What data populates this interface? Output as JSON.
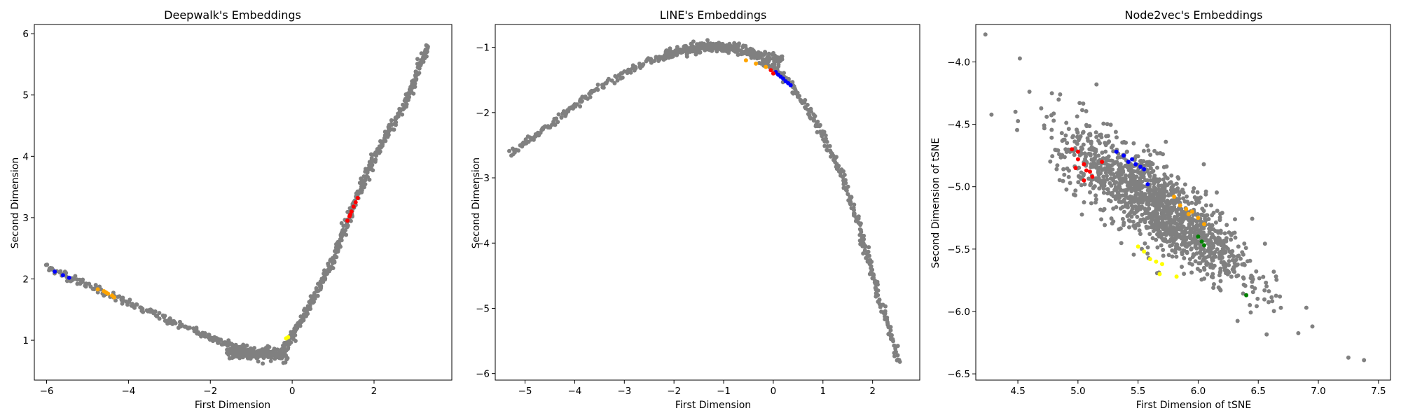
{
  "colors": {
    "background": "#808080",
    "red": "#ff0000",
    "blue": "#0000ff",
    "orange": "#ffa500",
    "yellow": "#ffff00",
    "green": "#008000"
  },
  "chart_data": [
    {
      "type": "scatter",
      "title": "Deepwalk's Embeddings",
      "xlabel": "First Dimension",
      "ylabel": "Second Dimension",
      "xlim": [
        -6.3,
        3.9
      ],
      "ylim": [
        0.35,
        6.15
      ],
      "xticks": [
        -6,
        -4,
        -2,
        0,
        2
      ],
      "yticks": [
        1,
        2,
        3,
        4,
        5,
        6
      ],
      "grid": false,
      "description_series": [
        {
          "color_key": "background",
          "shape": "v-curve",
          "path": [
            [
              -6.0,
              2.2
            ],
            [
              -4.0,
              1.6
            ],
            [
              -2.0,
              1.05
            ],
            [
              -1.0,
              0.8
            ],
            [
              -0.3,
              0.75
            ],
            [
              0.3,
              1.4
            ],
            [
              1.0,
              2.3
            ],
            [
              1.5,
              3.2
            ],
            [
              2.0,
              4.0
            ],
            [
              2.8,
              4.9
            ],
            [
              3.3,
              5.8
            ]
          ]
        },
        {
          "color_key": "red",
          "points": [
            [
              1.35,
              2.95
            ],
            [
              1.4,
              3.02
            ],
            [
              1.45,
              3.1
            ],
            [
              1.5,
              3.18
            ],
            [
              1.55,
              3.25
            ],
            [
              1.6,
              3.32
            ],
            [
              1.42,
              3.05
            ]
          ]
        },
        {
          "color_key": "blue",
          "points": [
            [
              -5.8,
              2.12
            ],
            [
              -5.6,
              2.06
            ],
            [
              -5.45,
              2.02
            ]
          ]
        },
        {
          "color_key": "orange",
          "points": [
            [
              -4.75,
              1.83
            ],
            [
              -4.6,
              1.8
            ],
            [
              -4.5,
              1.76
            ],
            [
              -4.4,
              1.73
            ],
            [
              -4.35,
              1.7
            ],
            [
              -4.55,
              1.78
            ]
          ]
        },
        {
          "color_key": "yellow",
          "points": [
            [
              -0.15,
              1.03
            ],
            [
              -0.1,
              1.05
            ]
          ]
        }
      ]
    },
    {
      "type": "scatter",
      "title": "LINE's Embeddings",
      "xlabel": "First Dimension",
      "ylabel": "Second Dimension",
      "xlim": [
        -5.6,
        2.95
      ],
      "ylim": [
        -6.1,
        -0.65
      ],
      "xticks": [
        -5,
        -4,
        -3,
        -2,
        -1,
        0,
        1,
        2
      ],
      "yticks": [
        -6,
        -5,
        -4,
        -3,
        -2,
        -1
      ],
      "grid": false,
      "description_series": [
        {
          "color_key": "background",
          "shape": "arch",
          "path": [
            [
              -5.3,
              -2.62
            ],
            [
              -4.4,
              -2.15
            ],
            [
              -3.5,
              -1.6
            ],
            [
              -2.5,
              -1.2
            ],
            [
              -1.5,
              -1.0
            ],
            [
              -1.0,
              -0.98
            ],
            [
              -0.3,
              -1.15
            ],
            [
              0.3,
              -1.5
            ],
            [
              0.9,
              -2.2
            ],
            [
              1.4,
              -3.0
            ],
            [
              1.8,
              -3.9
            ],
            [
              2.1,
              -4.8
            ],
            [
              2.55,
              -5.82
            ]
          ]
        },
        {
          "color_key": "blue",
          "points": [
            [
              0.05,
              -1.38
            ],
            [
              0.1,
              -1.42
            ],
            [
              0.15,
              -1.45
            ],
            [
              0.2,
              -1.48
            ],
            [
              0.25,
              -1.52
            ],
            [
              0.3,
              -1.55
            ],
            [
              0.35,
              -1.58
            ]
          ]
        },
        {
          "color_key": "red",
          "points": [
            [
              -0.05,
              -1.35
            ],
            [
              0.0,
              -1.4
            ]
          ]
        },
        {
          "color_key": "orange",
          "points": [
            [
              -0.55,
              -1.2
            ],
            [
              -0.35,
              -1.25
            ],
            [
              -0.15,
              -1.3
            ]
          ]
        }
      ]
    },
    {
      "type": "scatter",
      "title": "Node2vec's Embeddings",
      "xlabel": "First Dimension of tSNE",
      "ylabel": "Second Dimension of tSNE",
      "xlim": [
        4.15,
        7.6
      ],
      "ylim": [
        -6.55,
        -3.7
      ],
      "xticks": [
        4.5,
        5.0,
        5.5,
        6.0,
        6.5,
        7.0,
        7.5
      ],
      "xtick_labels": [
        "4.5",
        "5.0",
        "5.5",
        "6.0",
        "6.5",
        "7.0",
        "7.5"
      ],
      "yticks": [
        -6.5,
        -6.0,
        -5.5,
        -5.0,
        -4.5,
        -4.0
      ],
      "ytick_labels": [
        "−6.5",
        "−6.0",
        "−5.5",
        "−5.0",
        "−4.5",
        "−4.0"
      ],
      "grid": false,
      "description_series": [
        {
          "color_key": "background",
          "shape": "diagonal-cloud",
          "center": [
            5.65,
            -5.15
          ],
          "outliers": [
            [
              4.23,
              -3.78
            ],
            [
              4.48,
              -4.4
            ],
            [
              6.9,
              -5.97
            ],
            [
              6.95,
              -6.12
            ],
            [
              7.25,
              -6.37
            ],
            [
              7.38,
              -6.39
            ],
            [
              6.68,
              -5.88
            ]
          ]
        },
        {
          "color_key": "red",
          "points": [
            [
              4.95,
              -4.7
            ],
            [
              5.0,
              -4.78
            ],
            [
              5.05,
              -4.82
            ],
            [
              4.98,
              -4.85
            ],
            [
              5.1,
              -4.88
            ],
            [
              5.05,
              -4.95
            ],
            [
              5.12,
              -4.92
            ],
            [
              5.2,
              -4.8
            ],
            [
              5.0,
              -4.72
            ],
            [
              5.07,
              -4.87
            ]
          ]
        },
        {
          "color_key": "blue",
          "points": [
            [
              5.32,
              -4.72
            ],
            [
              5.38,
              -4.75
            ],
            [
              5.42,
              -4.8
            ],
            [
              5.48,
              -4.82
            ],
            [
              5.52,
              -4.84
            ],
            [
              5.55,
              -4.86
            ],
            [
              5.45,
              -4.78
            ],
            [
              5.58,
              -4.98
            ]
          ]
        },
        {
          "color_key": "orange",
          "points": [
            [
              5.8,
              -5.08
            ],
            [
              5.85,
              -5.15
            ],
            [
              5.9,
              -5.18
            ],
            [
              5.95,
              -5.2
            ],
            [
              6.0,
              -5.25
            ],
            [
              6.05,
              -5.3
            ],
            [
              5.92,
              -5.22
            ]
          ]
        },
        {
          "color_key": "yellow",
          "points": [
            [
              5.5,
              -5.48
            ],
            [
              5.55,
              -5.52
            ],
            [
              5.6,
              -5.58
            ],
            [
              5.65,
              -5.6
            ],
            [
              5.7,
              -5.62
            ],
            [
              5.68,
              -5.7
            ],
            [
              5.82,
              -5.72
            ]
          ]
        },
        {
          "color_key": "green",
          "points": [
            [
              6.0,
              -5.4
            ],
            [
              6.03,
              -5.44
            ],
            [
              6.05,
              -5.47
            ],
            [
              6.4,
              -5.87
            ]
          ]
        }
      ]
    }
  ]
}
